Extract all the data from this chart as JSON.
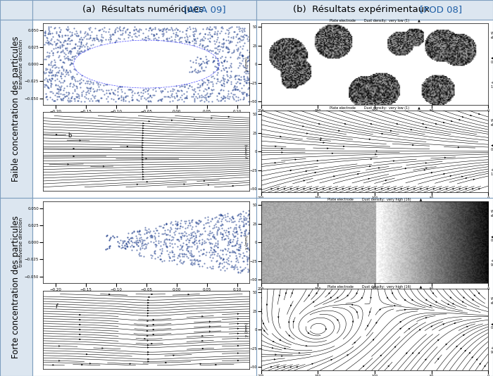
{
  "title_a": "(a)  Résultats numériques ",
  "title_a_ref": "[ADA 09]",
  "title_b": "(b)  Résultats expérimentaux ",
  "title_b_ref": "[POD 08]",
  "label_left_top": "Faible concentration des particules",
  "label_left_bottom": "Forte concentration des particules",
  "header_bg": "#dce6f0",
  "side_bg": "#dce6f0",
  "border_color": "#7f9fbf",
  "ref_color": "#1f5fa6",
  "title_color_a": "#1f5fa6",
  "body_bg": "#ffffff",
  "fontsize_header": 9.5,
  "fontsize_side": 8.5,
  "fontsize_ref": 9.5
}
